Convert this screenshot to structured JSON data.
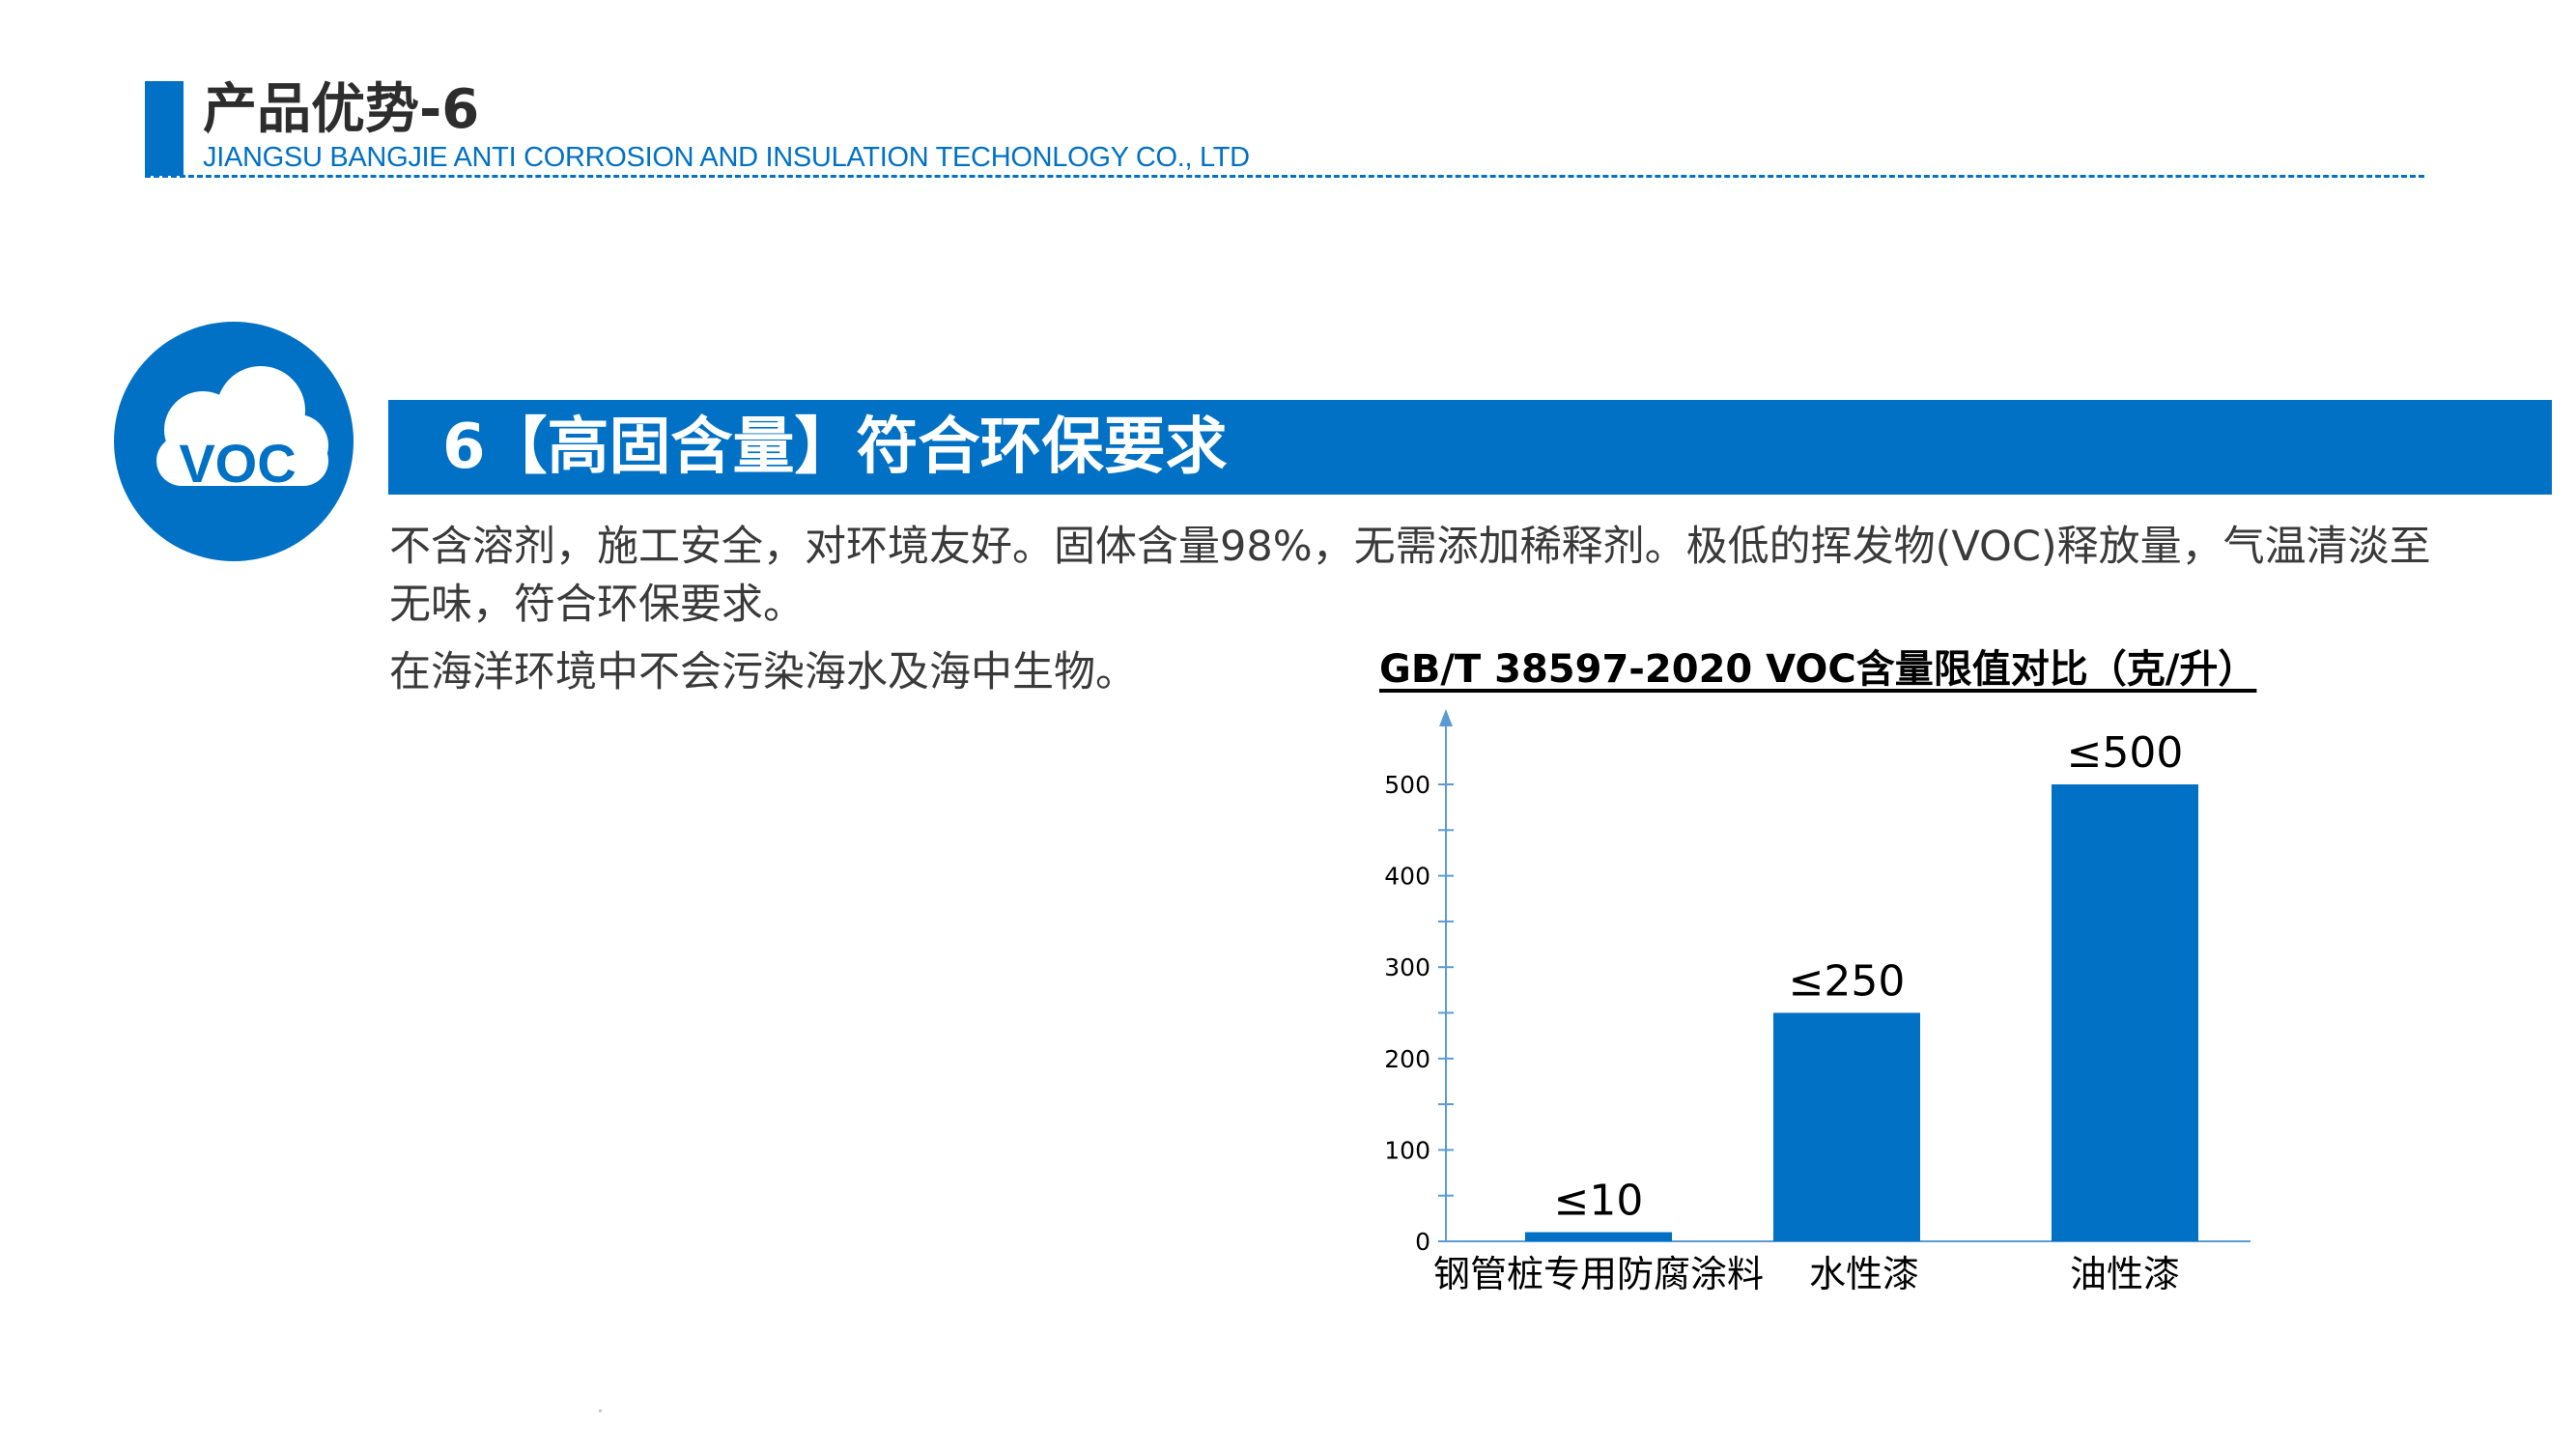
{
  "header": {
    "title": "产品优势-6",
    "company": "JIANGSU BANGJIE ANTI CORROSION AND INSULATION TECHONLOGY CO., LTD",
    "accent_color": "#0071c5"
  },
  "badge": {
    "icon": "cloud-icon",
    "text": "VOC"
  },
  "section": {
    "heading": "6【高固含量】符合环保要求"
  },
  "body": {
    "paragraph_1": "不含溶剂，施工安全，对环境友好。固体含量98%，无需添加稀释剂。极低的挥发物(VOC)释放量，气温清淡至无味，符合环保要求。",
    "paragraph_2": "在海洋环境中不会污染海水及海中生物。"
  },
  "chart_data": {
    "type": "bar",
    "title": "GB/T  38597-2020  VOC含量限值对比（克/升）",
    "categories": [
      "钢管桩专用防腐涂料",
      "水性漆",
      "油性漆"
    ],
    "values": [
      10,
      250,
      500
    ],
    "data_labels": [
      "≤10",
      "≤250",
      "≤500"
    ],
    "yticks": [
      0,
      100,
      200,
      300,
      400,
      500
    ],
    "ylim": [
      0,
      500
    ],
    "bar_color": "#0071c5",
    "axis_color": "#5b9bd5",
    "grid": false,
    "legend": "none"
  }
}
